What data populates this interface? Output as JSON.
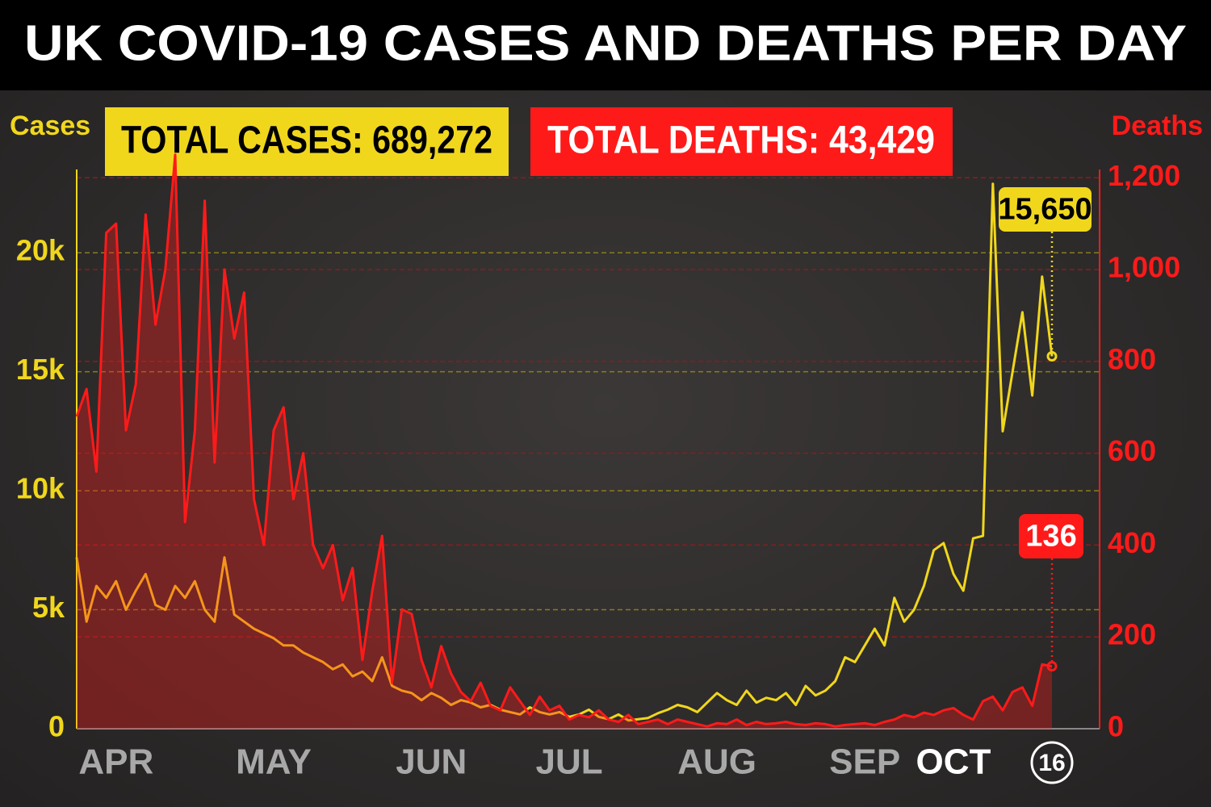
{
  "chart_data": {
    "type": "line",
    "title": "UK COVID-19 CASES AND DEATHS PER DAY",
    "ylabel": "Cases",
    "y2label": "Deaths",
    "boxes": [
      "TOTAL CASES: 689,272",
      "TOTAL DEATHS: 43,429"
    ],
    "callouts": [
      "15,650",
      "136"
    ],
    "categories": [
      null,
      null,
      null,
      null,
      "APR",
      null,
      null,
      null,
      null,
      null,
      null,
      null,
      null,
      null,
      null,
      null,
      null,
      null,
      null,
      null,
      "MAY",
      null,
      null,
      null,
      null,
      null,
      null,
      null,
      null,
      null,
      null,
      null,
      null,
      null,
      null,
      null,
      "JUN",
      null,
      null,
      null,
      null,
      null,
      null,
      null,
      null,
      null,
      null,
      null,
      null,
      null,
      "JUL",
      null,
      null,
      null,
      null,
      null,
      null,
      null,
      null,
      null,
      null,
      null,
      null,
      null,
      null,
      "AUG",
      null,
      null,
      null,
      null,
      null,
      null,
      null,
      null,
      null,
      null,
      null,
      null,
      null,
      null,
      "SEP",
      null,
      null,
      null,
      null,
      null,
      null,
      null,
      null,
      "OCT",
      null,
      null,
      null,
      null,
      null,
      null,
      null,
      null,
      null,
      "16"
    ],
    "series": [
      {
        "color": "#f0d71c",
        "values": [
          7200,
          4500,
          6000,
          5500,
          6200,
          5000,
          5800,
          6500,
          5200,
          5000,
          6000,
          5500,
          6200,
          5000,
          4500,
          7200,
          4800,
          4500,
          4200,
          4000,
          3800,
          3500,
          3500,
          3200,
          3000,
          2800,
          2500,
          2700,
          2200,
          2400,
          2000,
          3000,
          1800,
          1600,
          1500,
          1200,
          1500,
          1300,
          1000,
          1200,
          1100,
          900,
          1000,
          800,
          700,
          600,
          900,
          700,
          600,
          700,
          500,
          600,
          800,
          500,
          400,
          600,
          350,
          400,
          450,
          650,
          800,
          1000,
          900,
          700,
          1100,
          1500,
          1200,
          1000,
          1600,
          1100,
          1300,
          1200,
          1500,
          1000,
          1800,
          1400,
          1600,
          2000,
          3000,
          2800,
          3500,
          4200,
          3500,
          5500,
          4500,
          5000,
          6000,
          7500,
          7800,
          6500,
          5800,
          8000,
          8100,
          22900,
          12500,
          15000,
          17500,
          14000,
          19000,
          15650
        ]
      },
      {
        "color": "#ff1a1a",
        "axis": "y2",
        "values": [
          680,
          740,
          560,
          1080,
          1100,
          650,
          750,
          1120,
          880,
          1000,
          1250,
          450,
          650,
          1150,
          580,
          1000,
          850,
          950,
          500,
          400,
          650,
          700,
          500,
          600,
          400,
          350,
          400,
          280,
          350,
          150,
          300,
          420,
          100,
          260,
          250,
          150,
          90,
          180,
          120,
          80,
          60,
          100,
          50,
          40,
          90,
          60,
          30,
          70,
          40,
          50,
          20,
          30,
          25,
          40,
          20,
          15,
          30,
          10,
          15,
          20,
          10,
          20,
          15,
          10,
          5,
          12,
          10,
          20,
          8,
          15,
          10,
          12,
          15,
          10,
          8,
          12,
          10,
          5,
          8,
          10,
          12,
          8,
          15,
          20,
          30,
          25,
          35,
          30,
          40,
          45,
          30,
          20,
          60,
          70,
          40,
          80,
          90,
          50,
          140,
          136
        ]
      }
    ],
    "ylim": [
      0,
      23500
    ],
    "yticks": [
      0,
      {
        "value": 5000,
        "label": "5k"
      },
      {
        "value": 10000,
        "label": "10k"
      },
      {
        "value": 15000,
        "label": "15k"
      },
      {
        "value": 20000,
        "label": "20k"
      }
    ],
    "y2lim": [
      0,
      1218
    ],
    "y2ticks": [
      0,
      200,
      400,
      600,
      800,
      {
        "value": 1000,
        "label": "1,000"
      },
      {
        "value": 1200,
        "label": "1,200"
      }
    ],
    "grid": true
  }
}
